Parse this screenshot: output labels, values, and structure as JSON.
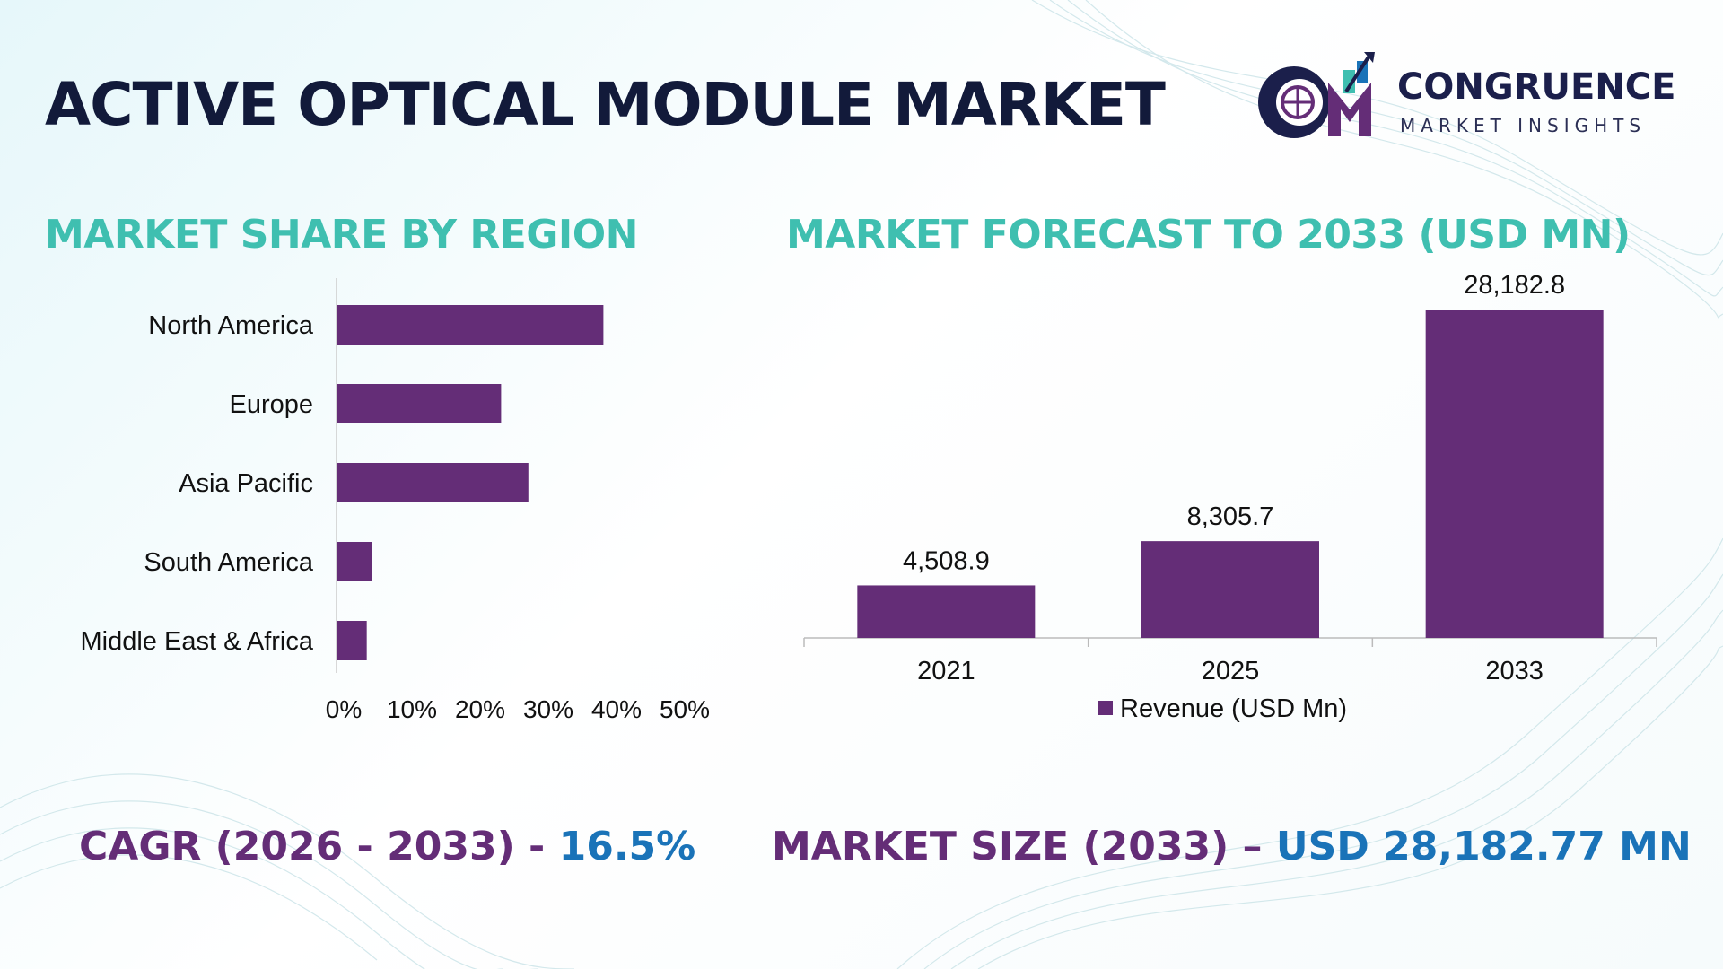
{
  "title": "ACTIVE OPTICAL MODULE MARKET",
  "logo": {
    "line1": "CONGRUENCE",
    "line2": "MARKET INSIGHTS"
  },
  "colors": {
    "bar": "#642d77",
    "section_title": "#3fbfb0",
    "title": "#121a3a",
    "footer_label": "#642d77",
    "footer_value": "#1a73b8"
  },
  "sections": {
    "region_title": "MARKET SHARE BY REGION",
    "forecast_title": "MARKET FORECAST TO 2033 (USD MN)"
  },
  "footer": {
    "cagr_label": "CAGR (2026 - 2033) - ",
    "cagr_value": "16.5%",
    "size_label": "MARKET SIZE (2033) – ",
    "size_value": "USD 28,182.77 MN"
  },
  "chart_data": [
    {
      "type": "bar",
      "orientation": "horizontal",
      "categories": [
        "North America",
        "Europe",
        "Asia Pacific",
        "South America",
        "Middle East & Africa"
      ],
      "values": [
        39,
        24,
        28,
        5,
        4.3
      ],
      "xlim": [
        0,
        50
      ],
      "ticks": [
        "0%",
        "10%",
        "20%",
        "30%",
        "40%",
        "50%"
      ],
      "grid": false
    },
    {
      "type": "bar",
      "categories": [
        "2021",
        "2025",
        "2033"
      ],
      "values": [
        4508.9,
        8305.7,
        28182.8
      ],
      "data_labels": [
        "4,508.9",
        "8,305.7",
        "28,182.8"
      ],
      "series": [
        {
          "name": "Revenue (USD Mn)",
          "values": [
            4508.9,
            8305.7,
            28182.8
          ]
        }
      ],
      "legend": "bottom",
      "grid": false
    }
  ]
}
